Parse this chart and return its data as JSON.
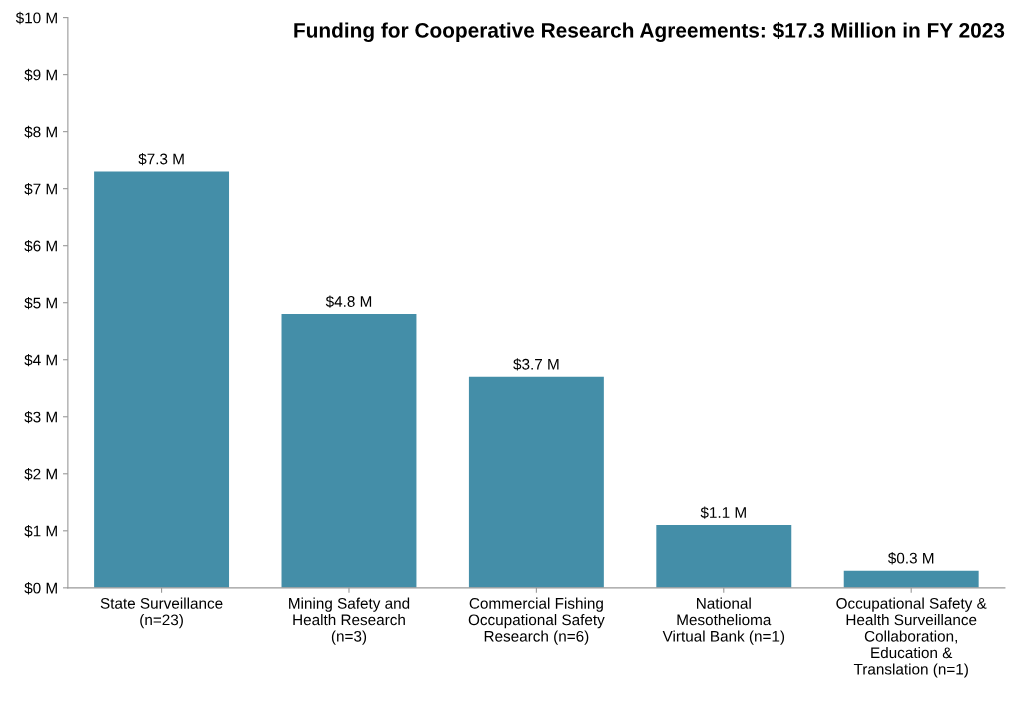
{
  "chart_data": {
    "type": "bar",
    "title": "Funding for Cooperative Research Agreements: $17.3 Million in FY 2023",
    "categories": [
      "State Surveillance\n(n=23)",
      "Mining Safety and\nHealth Research\n(n=3)",
      "Commercial Fishing\nOccupational Safety\nResearch (n=6)",
      "National\nMesothelioma\nVirtual Bank (n=1)",
      "Occupational Safety &\nHealth Surveillance\nCollaboration,\nEducation &\nTranslation (n=1)"
    ],
    "values": [
      7.3,
      4.8,
      3.7,
      1.1,
      0.3
    ],
    "value_labels": [
      "$7.3 M",
      "$4.8 M",
      "$3.7 M",
      "$1.1 M",
      "$0.3 M"
    ],
    "color": "#448ea8",
    "ylim": [
      0,
      10
    ],
    "yticks": [
      {
        "value": 0,
        "label": "$0 M"
      },
      {
        "value": 1,
        "label": "$1 M"
      },
      {
        "value": 2,
        "label": "$2 M"
      },
      {
        "value": 3,
        "label": "$3 M"
      },
      {
        "value": 4,
        "label": "$4 M"
      },
      {
        "value": 5,
        "label": "$5 M"
      },
      {
        "value": 6,
        "label": "$6 M"
      },
      {
        "value": 7,
        "label": "$7 M"
      },
      {
        "value": 8,
        "label": "$8 M"
      },
      {
        "value": 9,
        "label": "$9 M"
      },
      {
        "value": 10,
        "label": "$10 M"
      }
    ],
    "grid": false,
    "legend": false
  }
}
